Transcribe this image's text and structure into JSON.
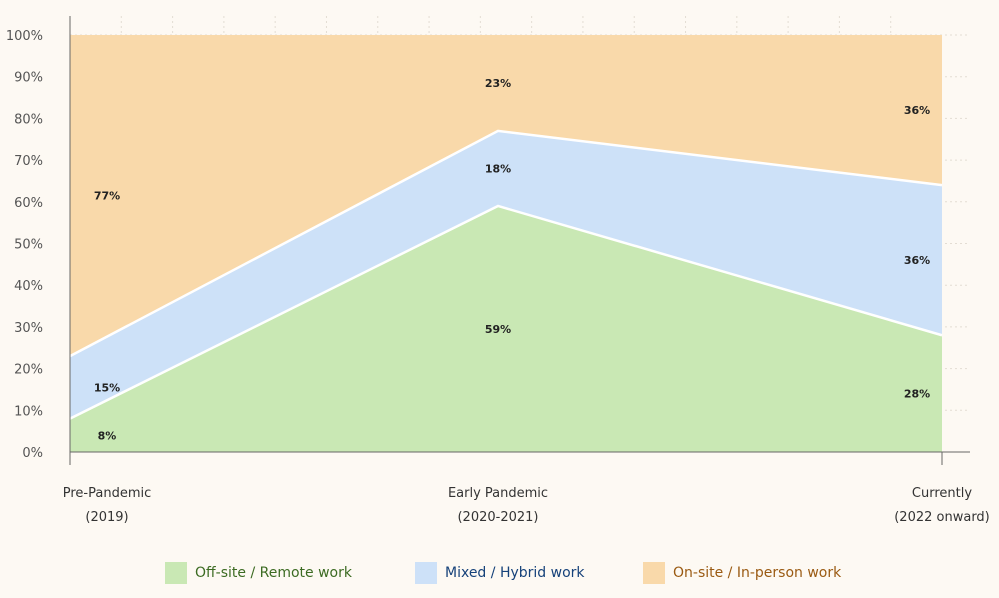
{
  "chart_data": {
    "type": "area",
    "stacked": true,
    "categories": [
      [
        "Pre-Pandemic",
        "(2019)"
      ],
      [
        "Early Pandemic",
        "(2020-2021)"
      ],
      [
        "Currently",
        "(2022 onward)"
      ]
    ],
    "ylim": [
      0,
      100
    ],
    "y_ticks": [
      "0%",
      "10%",
      "20%",
      "30%",
      "40%",
      "50%",
      "60%",
      "70%",
      "80%",
      "90%",
      "100%"
    ],
    "grid": true,
    "legend_position": "bottom",
    "series": [
      {
        "name": "Off-site / Remote work",
        "values": [
          8,
          59,
          28
        ],
        "labels": [
          "8%",
          "59%",
          "28%"
        ],
        "color": "#c9e8b4",
        "text_color": "#3c6b22"
      },
      {
        "name": "Mixed / Hybrid work",
        "values": [
          15,
          18,
          36
        ],
        "labels": [
          "15%",
          "18%",
          "36%"
        ],
        "color": "#cde1f8",
        "text_color": "#16427a"
      },
      {
        "name": "On-site / In-person work",
        "values": [
          77,
          23,
          36
        ],
        "labels": [
          "77%",
          "23%",
          "36%"
        ],
        "color": "#f9d9aa",
        "text_color": "#9a5a12"
      }
    ]
  }
}
